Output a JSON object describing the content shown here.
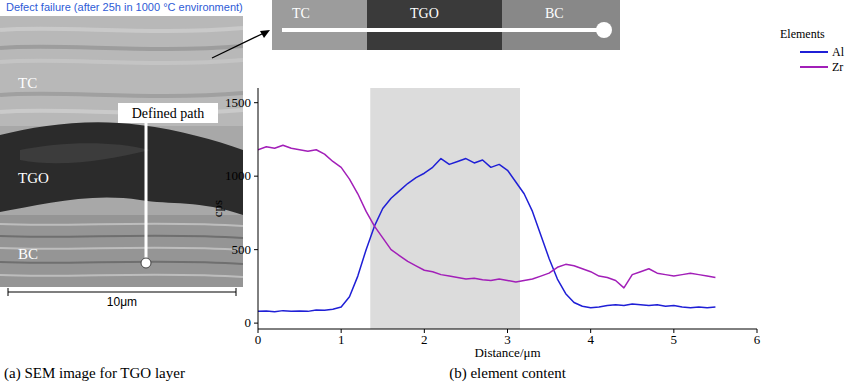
{
  "title": "Defect failure (after 25h in 1000 °C environment)",
  "panel_a": {
    "caption": "(a) SEM image for TGO layer",
    "layer_labels": [
      "TC",
      "TGO",
      "BC"
    ],
    "path_label": "Defined path",
    "scale_bar": "10μm"
  },
  "chart_data": {
    "type": "line",
    "caption": "(b) element content",
    "x_label": "Distance/μm",
    "y_label": "cps",
    "legend_title": "Elements",
    "legend": "right",
    "inset_labels": [
      "TC",
      "TGO",
      "BC"
    ],
    "shaded_region": [
      1.35,
      3.15
    ],
    "xlim": [
      0,
      6
    ],
    "xticks": [
      0,
      1,
      2,
      3,
      4,
      5,
      6
    ],
    "ylim": [
      -40,
      1600
    ],
    "yticks": [
      0,
      500,
      1000,
      1500
    ],
    "x": [
      0,
      0.1,
      0.2,
      0.3,
      0.4,
      0.5,
      0.6,
      0.7,
      0.8,
      0.9,
      1.0,
      1.1,
      1.2,
      1.3,
      1.4,
      1.5,
      1.6,
      1.7,
      1.8,
      1.9,
      2.0,
      2.1,
      2.2,
      2.3,
      2.4,
      2.5,
      2.6,
      2.7,
      2.8,
      2.9,
      3.0,
      3.1,
      3.2,
      3.3,
      3.4,
      3.5,
      3.6,
      3.7,
      3.8,
      3.9,
      4.0,
      4.1,
      4.2,
      4.3,
      4.4,
      4.5,
      4.6,
      4.7,
      4.8,
      4.9,
      5.0,
      5.1,
      5.2,
      5.3,
      5.4,
      5.5
    ],
    "series": [
      {
        "name": "Al",
        "color": "#1f1fd6",
        "values": [
          80,
          82,
          78,
          85,
          80,
          82,
          80,
          90,
          88,
          95,
          110,
          180,
          320,
          500,
          660,
          780,
          850,
          900,
          950,
          990,
          1020,
          1060,
          1120,
          1080,
          1100,
          1120,
          1090,
          1110,
          1060,
          1080,
          1040,
          960,
          880,
          760,
          600,
          440,
          300,
          200,
          140,
          115,
          105,
          110,
          120,
          125,
          120,
          130,
          125,
          120,
          125,
          115,
          120,
          110,
          105,
          110,
          105,
          110
        ]
      },
      {
        "name": "Zr",
        "color": "#a21fb8",
        "values": [
          1180,
          1200,
          1190,
          1210,
          1190,
          1180,
          1170,
          1180,
          1150,
          1100,
          1060,
          980,
          880,
          760,
          660,
          580,
          500,
          460,
          420,
          390,
          360,
          350,
          330,
          320,
          310,
          300,
          305,
          295,
          290,
          300,
          290,
          280,
          290,
          300,
          320,
          340,
          380,
          400,
          390,
          370,
          350,
          320,
          310,
          290,
          240,
          330,
          350,
          370,
          340,
          330,
          320,
          330,
          340,
          330,
          320,
          310
        ]
      }
    ]
  }
}
